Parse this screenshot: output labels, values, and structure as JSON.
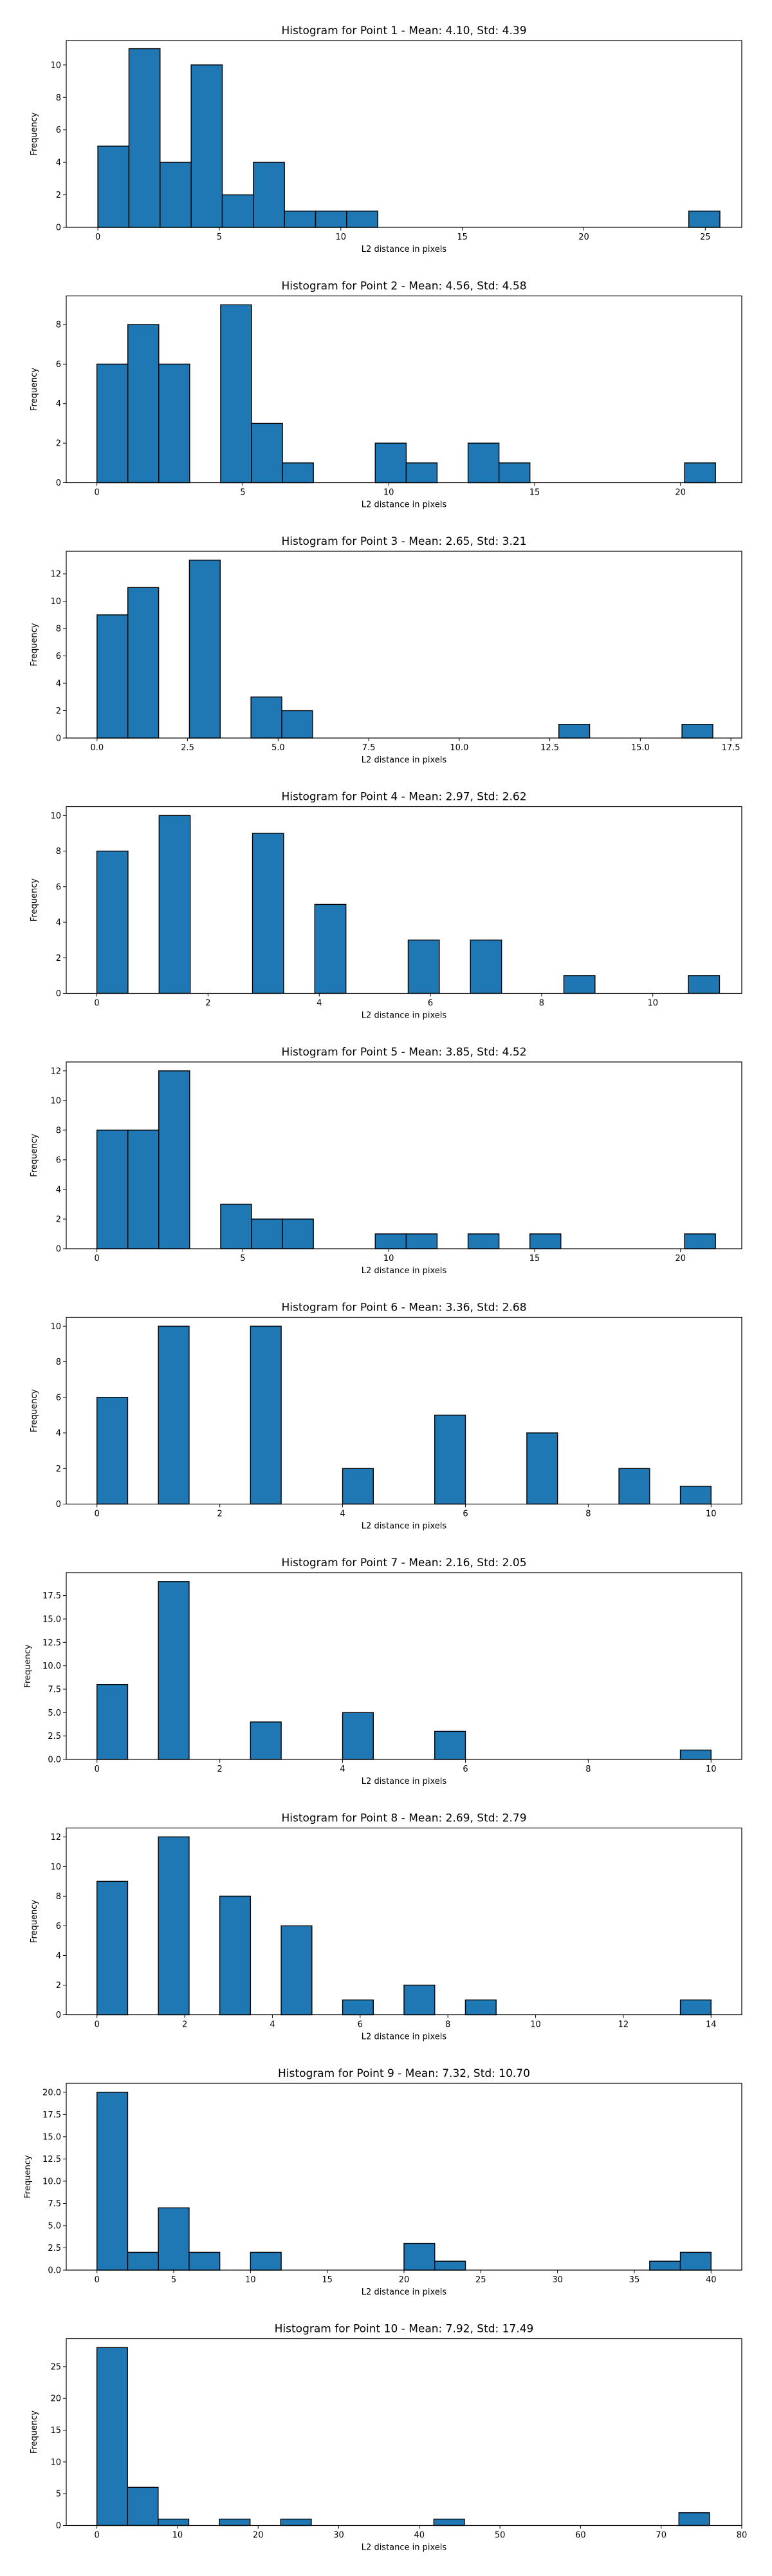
{
  "bar_color": "#1f77b4",
  "edge_color": "#000000",
  "chart_data": [
    {
      "type": "bar",
      "title": "Histogram for Point 1 - Mean: 4.10, Std: 4.39",
      "xlabel": "L2 distance in pixels",
      "ylabel": "Frequency",
      "xlim": [
        -1.3,
        26.5
      ],
      "ylim": [
        0,
        11.5
      ],
      "xticks": [
        0,
        5,
        10,
        15,
        20,
        25
      ],
      "xtick_labels": [
        "0",
        "5",
        "10",
        "15",
        "20",
        "25"
      ],
      "yticks": [
        0,
        2,
        4,
        6,
        8,
        10
      ],
      "ytick_labels": [
        "0",
        "2",
        "4",
        "6",
        "8",
        "10"
      ],
      "bin_width": 1.28,
      "bins": [
        {
          "start": 0.0,
          "count": 5
        },
        {
          "start": 1.28,
          "count": 11
        },
        {
          "start": 2.56,
          "count": 4
        },
        {
          "start": 3.84,
          "count": 10
        },
        {
          "start": 5.12,
          "count": 2
        },
        {
          "start": 6.4,
          "count": 4
        },
        {
          "start": 7.68,
          "count": 1
        },
        {
          "start": 8.96,
          "count": 1
        },
        {
          "start": 10.24,
          "count": 1
        },
        {
          "start": 24.32,
          "count": 1
        }
      ]
    },
    {
      "type": "bar",
      "title": "Histogram for Point 2 - Mean: 4.56, Std: 4.58",
      "xlabel": "L2 distance in pixels",
      "ylabel": "Frequency",
      "xlim": [
        -1.05,
        22.1
      ],
      "ylim": [
        0,
        9.45
      ],
      "xticks": [
        0,
        5,
        10,
        15,
        20
      ],
      "xtick_labels": [
        "0",
        "5",
        "10",
        "15",
        "20"
      ],
      "yticks": [
        0,
        2,
        4,
        6,
        8
      ],
      "ytick_labels": [
        "0",
        "2",
        "4",
        "6",
        "8"
      ],
      "bin_width": 1.06,
      "bins": [
        {
          "start": 0.0,
          "count": 6
        },
        {
          "start": 1.06,
          "count": 8
        },
        {
          "start": 2.12,
          "count": 6
        },
        {
          "start": 4.24,
          "count": 9
        },
        {
          "start": 5.3,
          "count": 3
        },
        {
          "start": 6.36,
          "count": 1
        },
        {
          "start": 9.54,
          "count": 2
        },
        {
          "start": 10.6,
          "count": 1
        },
        {
          "start": 12.72,
          "count": 2
        },
        {
          "start": 13.78,
          "count": 1
        },
        {
          "start": 20.14,
          "count": 1
        }
      ]
    },
    {
      "type": "bar",
      "title": "Histogram for Point 3 - Mean: 2.65, Std: 3.21",
      "xlabel": "L2 distance in pixels",
      "ylabel": "Frequency",
      "xlim": [
        -0.85,
        17.8
      ],
      "ylim": [
        0,
        13.65
      ],
      "xticks": [
        0,
        2.5,
        5,
        7.5,
        10,
        12.5,
        15,
        17.5
      ],
      "xtick_labels": [
        "0.0",
        "2.5",
        "5.0",
        "7.5",
        "10.0",
        "12.5",
        "15.0",
        "17.5"
      ],
      "yticks": [
        0,
        2,
        4,
        6,
        8,
        10,
        12
      ],
      "ytick_labels": [
        "0",
        "2",
        "4",
        "6",
        "8",
        "10",
        "12"
      ],
      "bin_width": 0.85,
      "bins": [
        {
          "start": 0.0,
          "count": 9
        },
        {
          "start": 0.85,
          "count": 11
        },
        {
          "start": 2.55,
          "count": 13
        },
        {
          "start": 4.25,
          "count": 3
        },
        {
          "start": 5.1,
          "count": 2
        },
        {
          "start": 12.75,
          "count": 1
        },
        {
          "start": 16.15,
          "count": 1
        }
      ]
    },
    {
      "type": "bar",
      "title": "Histogram for Point 4 - Mean: 2.97, Std: 2.62",
      "xlabel": "L2 distance in pixels",
      "ylabel": "Frequency",
      "xlim": [
        -0.55,
        11.6
      ],
      "ylim": [
        0,
        10.5
      ],
      "xticks": [
        0,
        2,
        4,
        6,
        8,
        10
      ],
      "xtick_labels": [
        "0",
        "2",
        "4",
        "6",
        "8",
        "10"
      ],
      "yticks": [
        0,
        2,
        4,
        6,
        8,
        10
      ],
      "ytick_labels": [
        "0",
        "2",
        "4",
        "6",
        "8",
        "10"
      ],
      "bin_width": 0.56,
      "bins": [
        {
          "start": 0.0,
          "count": 8
        },
        {
          "start": 1.12,
          "count": 10
        },
        {
          "start": 2.8,
          "count": 9
        },
        {
          "start": 3.92,
          "count": 5
        },
        {
          "start": 5.6,
          "count": 3
        },
        {
          "start": 6.72,
          "count": 3
        },
        {
          "start": 8.4,
          "count": 1
        },
        {
          "start": 10.64,
          "count": 1
        }
      ]
    },
    {
      "type": "bar",
      "title": "Histogram for Point 5 - Mean: 3.85, Std: 4.52",
      "xlabel": "L2 distance in pixels",
      "ylabel": "Frequency",
      "xlim": [
        -1.05,
        22.1
      ],
      "ylim": [
        0,
        12.6
      ],
      "xticks": [
        0,
        5,
        10,
        15,
        20
      ],
      "xtick_labels": [
        "0",
        "5",
        "10",
        "15",
        "20"
      ],
      "yticks": [
        0,
        2,
        4,
        6,
        8,
        10,
        12
      ],
      "ytick_labels": [
        "0",
        "2",
        "4",
        "6",
        "8",
        "10",
        "12"
      ],
      "bin_width": 1.06,
      "bins": [
        {
          "start": 0.0,
          "count": 8
        },
        {
          "start": 1.06,
          "count": 8
        },
        {
          "start": 2.12,
          "count": 12
        },
        {
          "start": 4.24,
          "count": 3
        },
        {
          "start": 5.3,
          "count": 2
        },
        {
          "start": 6.36,
          "count": 2
        },
        {
          "start": 9.54,
          "count": 1
        },
        {
          "start": 10.6,
          "count": 1
        },
        {
          "start": 12.72,
          "count": 1
        },
        {
          "start": 14.84,
          "count": 1
        },
        {
          "start": 20.14,
          "count": 1
        }
      ]
    },
    {
      "type": "bar",
      "title": "Histogram for Point 6 - Mean: 3.36, Std: 2.68",
      "xlabel": "L2 distance in pixels",
      "ylabel": "Frequency",
      "xlim": [
        -0.5,
        10.5
      ],
      "ylim": [
        0,
        10.5
      ],
      "xticks": [
        0,
        2,
        4,
        6,
        8,
        10
      ],
      "xtick_labels": [
        "0",
        "2",
        "4",
        "6",
        "8",
        "10"
      ],
      "yticks": [
        0,
        2,
        4,
        6,
        8,
        10
      ],
      "ytick_labels": [
        "0",
        "2",
        "4",
        "6",
        "8",
        "10"
      ],
      "bin_width": 0.5,
      "bins": [
        {
          "start": 0.0,
          "count": 6
        },
        {
          "start": 1.0,
          "count": 10
        },
        {
          "start": 2.5,
          "count": 10
        },
        {
          "start": 4.0,
          "count": 2
        },
        {
          "start": 5.5,
          "count": 5
        },
        {
          "start": 7.0,
          "count": 4
        },
        {
          "start": 8.5,
          "count": 2
        },
        {
          "start": 9.5,
          "count": 1
        }
      ]
    },
    {
      "type": "bar",
      "title": "Histogram for Point 7 - Mean: 2.16, Std: 2.05",
      "xlabel": "L2 distance in pixels",
      "ylabel": "Frequency",
      "xlim": [
        -0.5,
        10.5
      ],
      "ylim": [
        0,
        19.95
      ],
      "xticks": [
        0,
        2,
        4,
        6,
        8,
        10
      ],
      "xtick_labels": [
        "0",
        "2",
        "4",
        "6",
        "8",
        "10"
      ],
      "yticks": [
        0,
        2.5,
        5,
        7.5,
        10,
        12.5,
        15,
        17.5
      ],
      "ytick_labels": [
        "0.0",
        "2.5",
        "5.0",
        "7.5",
        "10.0",
        "12.5",
        "15.0",
        "17.5"
      ],
      "bin_width": 0.5,
      "bins": [
        {
          "start": 0.0,
          "count": 8
        },
        {
          "start": 1.0,
          "count": 19
        },
        {
          "start": 2.5,
          "count": 4
        },
        {
          "start": 4.0,
          "count": 5
        },
        {
          "start": 5.5,
          "count": 3
        },
        {
          "start": 9.5,
          "count": 1
        }
      ]
    },
    {
      "type": "bar",
      "title": "Histogram for Point 8 - Mean: 2.69, Std: 2.79",
      "xlabel": "L2 distance in pixels",
      "ylabel": "Frequency",
      "xlim": [
        -0.7,
        14.7
      ],
      "ylim": [
        0,
        12.6
      ],
      "xticks": [
        0,
        2,
        4,
        6,
        8,
        10,
        12,
        14
      ],
      "xtick_labels": [
        "0",
        "2",
        "4",
        "6",
        "8",
        "10",
        "12",
        "14"
      ],
      "yticks": [
        0,
        2,
        4,
        6,
        8,
        10,
        12
      ],
      "ytick_labels": [
        "0",
        "2",
        "4",
        "6",
        "8",
        "10",
        "12"
      ],
      "bin_width": 0.7,
      "bins": [
        {
          "start": 0.0,
          "count": 9
        },
        {
          "start": 1.4,
          "count": 12
        },
        {
          "start": 2.8,
          "count": 8
        },
        {
          "start": 4.2,
          "count": 6
        },
        {
          "start": 5.6,
          "count": 1
        },
        {
          "start": 7.0,
          "count": 2
        },
        {
          "start": 8.4,
          "count": 1
        },
        {
          "start": 13.3,
          "count": 1
        }
      ]
    },
    {
      "type": "bar",
      "title": "Histogram for Point 9 - Mean: 7.32, Std: 10.70",
      "xlabel": "L2 distance in pixels",
      "ylabel": "Frequency",
      "xlim": [
        -2.0,
        42.0
      ],
      "ylim": [
        0,
        21.0
      ],
      "xticks": [
        0,
        5,
        10,
        15,
        20,
        25,
        30,
        35,
        40
      ],
      "xtick_labels": [
        "0",
        "5",
        "10",
        "15",
        "20",
        "25",
        "30",
        "35",
        "40"
      ],
      "yticks": [
        0,
        2.5,
        5,
        7.5,
        10,
        12.5,
        15,
        17.5,
        20
      ],
      "ytick_labels": [
        "0.0",
        "2.5",
        "5.0",
        "7.5",
        "10.0",
        "12.5",
        "15.0",
        "17.5",
        "20.0"
      ],
      "bin_width": 2.0,
      "bins": [
        {
          "start": 0.0,
          "count": 20
        },
        {
          "start": 2.0,
          "count": 2
        },
        {
          "start": 4.0,
          "count": 7
        },
        {
          "start": 6.0,
          "count": 2
        },
        {
          "start": 10.0,
          "count": 2
        },
        {
          "start": 20.0,
          "count": 3
        },
        {
          "start": 22.0,
          "count": 1
        },
        {
          "start": 36.0,
          "count": 1
        },
        {
          "start": 38.0,
          "count": 2
        }
      ]
    },
    {
      "type": "bar",
      "title": "Histogram for Point 10 - Mean: 7.92, Std: 17.49",
      "xlabel": "L2 distance in pixels",
      "ylabel": "Frequency",
      "xlim": [
        -3.8,
        80.0
      ],
      "ylim": [
        0,
        29.4
      ],
      "xticks": [
        0,
        10,
        20,
        30,
        40,
        50,
        60,
        70,
        80
      ],
      "xtick_labels": [
        "0",
        "10",
        "20",
        "30",
        "40",
        "50",
        "60",
        "70",
        "80"
      ],
      "yticks": [
        0,
        5,
        10,
        15,
        20,
        25
      ],
      "ytick_labels": [
        "0",
        "5",
        "10",
        "15",
        "20",
        "25"
      ],
      "bin_width": 3.8,
      "bins": [
        {
          "start": 0.0,
          "count": 28
        },
        {
          "start": 3.8,
          "count": 6
        },
        {
          "start": 7.6,
          "count": 1
        },
        {
          "start": 15.2,
          "count": 1
        },
        {
          "start": 22.8,
          "count": 1
        },
        {
          "start": 41.8,
          "count": 1
        },
        {
          "start": 72.2,
          "count": 2
        }
      ]
    }
  ]
}
